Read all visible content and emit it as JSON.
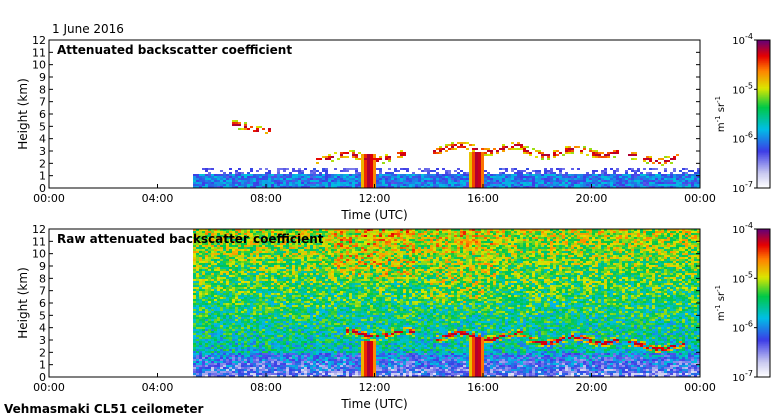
{
  "date_label": "1 June 2016",
  "footer_label": "Vehmasmaki CL51 ceilometer",
  "chart_data": [
    {
      "type": "heatmap",
      "title": "Attenuated backscatter coefficient",
      "xlabel": "Time (UTC)",
      "ylabel": "Height (km)",
      "xlim": [
        0,
        24
      ],
      "ylim": [
        0,
        12
      ],
      "x_ticks": [
        "00:00",
        "04:00",
        "08:00",
        "12:00",
        "16:00",
        "20:00",
        "00:00"
      ],
      "y_ticks": [
        0,
        1,
        2,
        3,
        4,
        5,
        6,
        7,
        8,
        9,
        10,
        11,
        12
      ],
      "colorbar": {
        "scale": "log",
        "range": [
          1e-07,
          0.0001
        ],
        "ticks": [
          "10-7",
          "10-6",
          "10-5",
          "10-4"
        ],
        "unit": "m-1 sr-1"
      },
      "data_start_hour": 5.3,
      "boundary_layer_top_km": 1.2,
      "cloud_layers": [
        {
          "start": 6.8,
          "end": 8.2,
          "height_km": 4.9
        },
        {
          "start": 9.8,
          "end": 13.2,
          "height_km": 2.5
        },
        {
          "start": 14.2,
          "end": 17.5,
          "height_km": 3.2
        },
        {
          "start": 17.5,
          "end": 21.0,
          "height_km": 2.9
        },
        {
          "start": 21.3,
          "end": 23.2,
          "height_km": 2.4
        }
      ],
      "precip_shafts": [
        {
          "hour": 11.8,
          "height_km": 2.7
        },
        {
          "hour": 15.8,
          "height_km": 3.0
        }
      ]
    },
    {
      "type": "heatmap",
      "title": "Raw attenuated backscatter coefficient",
      "xlabel": "Time (UTC)",
      "ylabel": "Height (km)",
      "xlim": [
        0,
        24
      ],
      "ylim": [
        0,
        12
      ],
      "x_ticks": [
        "00:00",
        "04:00",
        "08:00",
        "12:00",
        "16:00",
        "20:00",
        "00:00"
      ],
      "y_ticks": [
        0,
        1,
        2,
        3,
        4,
        5,
        6,
        7,
        8,
        9,
        10,
        11,
        12
      ],
      "colorbar": {
        "scale": "log",
        "range": [
          1e-07,
          0.0001
        ],
        "ticks": [
          "10-7",
          "10-6",
          "10-5",
          "10-4"
        ],
        "unit": "m-1 sr-1"
      },
      "data_start_hour": 5.3,
      "cloud_layers": [
        {
          "start": 11.0,
          "end": 13.5,
          "height_km": 3.5
        },
        {
          "start": 14.2,
          "end": 17.5,
          "height_km": 3.3
        },
        {
          "start": 17.5,
          "end": 21.0,
          "height_km": 3.0
        },
        {
          "start": 21.3,
          "end": 23.5,
          "height_km": 2.5
        }
      ],
      "precip_shafts": [
        {
          "hour": 11.8,
          "height_km": 3.0
        },
        {
          "hour": 15.8,
          "height_km": 3.2
        }
      ]
    }
  ]
}
